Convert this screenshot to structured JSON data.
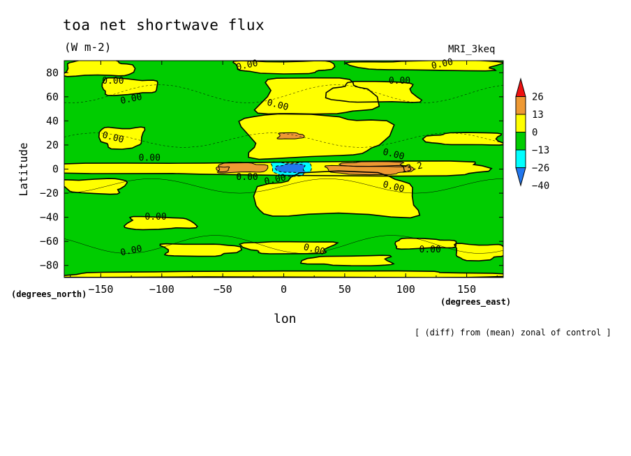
{
  "header": {
    "title": "toa net shortwave flux",
    "units": "(W m-2)",
    "model": "MRI_3keq"
  },
  "footnote": "[ (diff) from (mean) zonal of control ]",
  "colors": {
    "red": "#ee1111",
    "orange": "#ee9933",
    "yellow": "#ffff00",
    "green": "#00cc00",
    "cyan": "#00ffff",
    "blue": "#2277ee"
  },
  "chart_data": {
    "type": "heatmap",
    "title": "toa net shortwave flux",
    "subtitle": "(W m-2)",
    "xlabel": "lon",
    "ylabel": "Latitude",
    "x_units_label": "(degrees_east)",
    "y_units_label": "(degrees_north)",
    "xlim": [
      -180,
      180
    ],
    "ylim": [
      -90,
      90
    ],
    "x_ticks": [
      -150,
      -100,
      -50,
      0,
      50,
      100,
      150
    ],
    "y_ticks": [
      -80,
      -60,
      -40,
      -20,
      0,
      20,
      40,
      60,
      80
    ],
    "colorbar": {
      "labels": [
        "26",
        "13",
        "0",
        "-13",
        "-26",
        "-40"
      ],
      "levels": [
        26,
        13,
        0,
        -13,
        -26,
        -40
      ],
      "colors": [
        "#ee1111",
        "#ee9933",
        "#ffff00",
        "#00cc00",
        "#00ffff",
        "#2277ee"
      ]
    },
    "contour_labels": [
      "0.00",
      "0.00",
      "0.00",
      "0.00",
      "0.00",
      "0.00",
      "0.00",
      "0.00",
      "0.00",
      "0.00",
      "0.00",
      "0.00",
      "0.00",
      "0.00",
      "0.00",
      "0.00",
      "13.2"
    ],
    "yellow_regions": [
      {
        "lon": [
          -180,
          -125
        ],
        "lat": [
          77,
          90
        ]
      },
      {
        "lon": [
          -150,
          -105
        ],
        "lat": [
          62,
          75
        ]
      },
      {
        "lon": [
          -40,
          40
        ],
        "lat": [
          80,
          90
        ]
      },
      {
        "lon": [
          60,
          180
        ],
        "lat": [
          82,
          90
        ]
      },
      {
        "lon": [
          40,
          110
        ],
        "lat": [
          55,
          72
        ]
      },
      {
        "lon": [
          -20,
          70
        ],
        "lat": [
          45,
          75
        ]
      },
      {
        "lon": [
          -35,
          80
        ],
        "lat": [
          10,
          45
        ]
      },
      {
        "lon": [
          -150,
          -115
        ],
        "lat": [
          18,
          35
        ]
      },
      {
        "lon": [
          -180,
          180
        ],
        "lat": [
          -5,
          6
        ]
      },
      {
        "lon": [
          -20,
          110
        ],
        "lat": [
          -40,
          -5
        ]
      },
      {
        "lon": [
          -130,
          -75
        ],
        "lat": [
          -50,
          -40
        ]
      },
      {
        "lon": [
          -100,
          -40
        ],
        "lat": [
          -72,
          -62
        ]
      },
      {
        "lon": [
          -30,
          40
        ],
        "lat": [
          -70,
          -60
        ]
      },
      {
        "lon": [
          20,
          90
        ],
        "lat": [
          -80,
          -72
        ]
      },
      {
        "lon": [
          -180,
          180
        ],
        "lat": [
          -90,
          -85
        ]
      },
      {
        "lon": [
          90,
          140
        ],
        "lat": [
          -66,
          -58
        ]
      },
      {
        "lon": [
          140,
          180
        ],
        "lat": [
          -75,
          -62
        ]
      },
      {
        "lon": [
          -180,
          -130
        ],
        "lat": [
          -20,
          -8
        ]
      },
      {
        "lon": [
          120,
          180
        ],
        "lat": [
          20,
          30
        ]
      }
    ],
    "orange_regions": [
      {
        "lon": [
          -55,
          -15
        ],
        "lat": [
          -3,
          5
        ]
      },
      {
        "lon": [
          35,
          105
        ],
        "lat": [
          -4,
          3
        ]
      },
      {
        "lon": [
          50,
          100
        ],
        "lat": [
          2,
          6
        ]
      },
      {
        "lon": [
          -5,
          15
        ],
        "lat": [
          25,
          30
        ]
      },
      {
        "lon": [
          -55,
          -45
        ],
        "lat": [
          -2,
          2
        ]
      }
    ],
    "blue_regions": [
      {
        "lon": [
          -5,
          18
        ],
        "lat": [
          -3,
          4
        ]
      }
    ],
    "cyan_regions": [
      {
        "lon": [
          -10,
          22
        ],
        "lat": [
          -5,
          6
        ]
      }
    ]
  }
}
